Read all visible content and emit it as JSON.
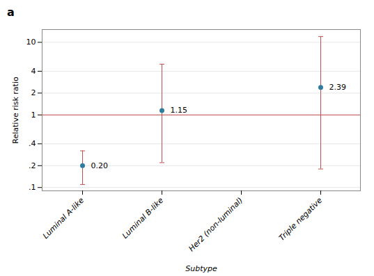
{
  "chart_data": {
    "type": "scatter",
    "title": "a",
    "categories": [
      "Luminal A-like",
      "Luminal B-like",
      "Her2 (non-luminal)",
      "Triple negative"
    ],
    "values": [
      0.2,
      1.15,
      null,
      2.39
    ],
    "value_labels": [
      "0.20",
      "1.15",
      null,
      "2.39"
    ],
    "data_labels": true,
    "color": "#2e7d9e",
    "error_bars": {
      "lower": [
        0.11,
        0.22,
        null,
        0.18
      ],
      "upper": [
        0.32,
        5.0,
        null,
        12.0
      ],
      "color": "#c0504d"
    },
    "reference_line": {
      "value": 1.0,
      "color": "#c0504d"
    },
    "log": "y",
    "ylim": [
      0.09,
      15
    ],
    "yticks": [
      {
        "value": 0.1,
        "label": ".1"
      },
      {
        "value": 0.2,
        "label": ".2"
      },
      {
        "value": 0.4,
        "label": ".4"
      },
      1,
      2,
      4,
      10
    ],
    "grid": true,
    "xlabel": "Subtype",
    "ylabel": "Relative risk ratio"
  }
}
